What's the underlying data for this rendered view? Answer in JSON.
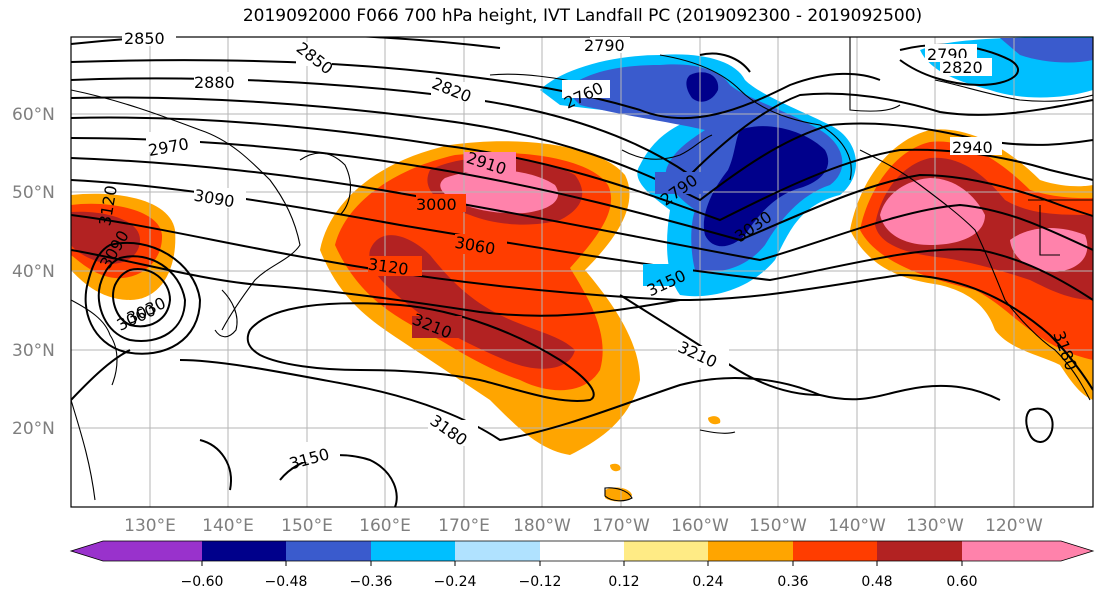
{
  "title": "2019092000 F066 700 hPa height, IVT Landfall PC (2019092300 - 2019092500)",
  "latitude_labels": [
    "60°N",
    "50°N",
    "40°N",
    "30°N",
    "20°N"
  ],
  "longitude_labels": [
    "130°E",
    "140°E",
    "150°E",
    "160°E",
    "170°E",
    "180°W",
    "170°W",
    "160°W",
    "150°W",
    "140°W",
    "130°W",
    "120°W"
  ],
  "contour_labels": [
    "2850",
    "2850",
    "2790",
    "2880",
    "2820",
    "2760",
    "2790",
    "2820",
    "2970",
    "2910",
    "2940",
    "3090",
    "3000",
    "2790",
    "3120",
    "3090",
    "3030",
    "3060",
    "3120",
    "3150",
    "3060",
    "3030",
    "3210",
    "3210",
    "3180",
    "3180",
    "3150"
  ],
  "colorbar": {
    "ticks": [
      "−0.60",
      "−0.48",
      "−0.36",
      "−0.24",
      "−0.12",
      "0.12",
      "0.24",
      "0.36",
      "0.48",
      "0.60"
    ],
    "colors": [
      "#9932cc",
      "#00008b",
      "#3a5bcd",
      "#00bfff",
      "#b0e2ff",
      "#ffffff",
      "#ffeb85",
      "#ffa500",
      "#ff3d00",
      "#b22222",
      "#ff82ab"
    ]
  }
}
